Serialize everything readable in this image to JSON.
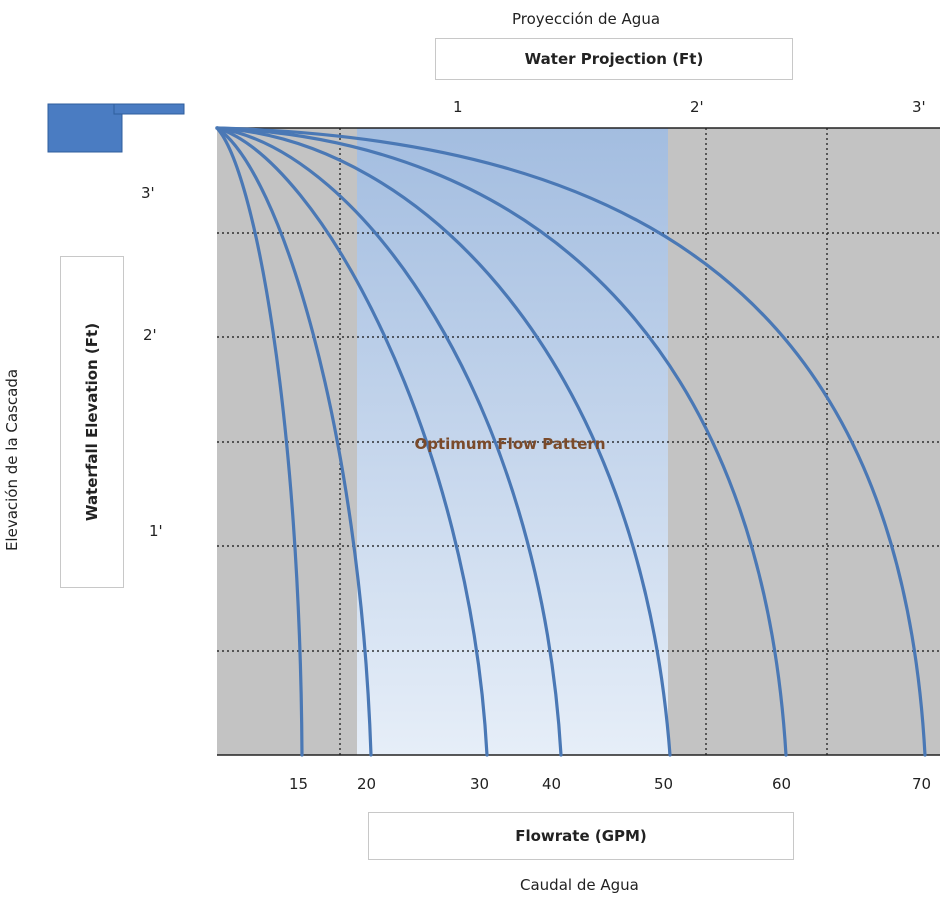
{
  "top_caption": "Proyección de Agua",
  "bottom_caption": "Caudal de Agua",
  "left_caption": "Elevación de la Cascada",
  "chart_data": {
    "type": "line",
    "title": "",
    "x_top_label": "Water Projection (Ft)",
    "x_top_ticks": [
      "1",
      "2'",
      "3'"
    ],
    "x_bottom_label": "Flowrate (GPM)",
    "x_bottom_ticks": [
      "15",
      "20",
      "30",
      "40",
      "50",
      "60",
      "70"
    ],
    "ylabel": "Waterfall Elevation (Ft)",
    "y_ticks": [
      "3'",
      "2'",
      "1'"
    ],
    "grid": true,
    "annotation": "Optimum Flow Pattern",
    "optimum_range_gpm": [
      20,
      50
    ],
    "series": [
      {
        "gpm": "15",
        "color": "#4a78b5"
      },
      {
        "gpm": "20",
        "color": "#4a78b5"
      },
      {
        "gpm": "30",
        "color": "#4a78b5"
      },
      {
        "gpm": "40",
        "color": "#4a78b5"
      },
      {
        "gpm": "50",
        "color": "#4a78b5"
      },
      {
        "gpm": "60",
        "color": "#4a78b5"
      },
      {
        "gpm": "70",
        "color": "#4a78b5"
      }
    ],
    "colors": {
      "plot_bg": "#c3c3c3",
      "optimum_top": "#a3bde0",
      "optimum_bottom": "#e6eef8",
      "curve": "#4a78b5",
      "annotation_text": "#7a4a2a",
      "weir": "#4a7cc2"
    }
  }
}
